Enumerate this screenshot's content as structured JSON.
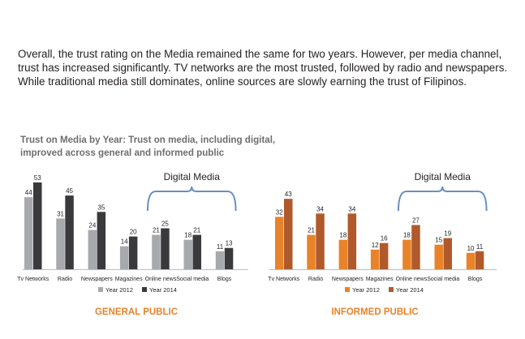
{
  "intro_text": "Overall, the trust rating on the Media remained the same for two years. However, per media channel, trust has increased significantly.  TV networks are the most trusted, followed by radio and newspapers. While traditional media still dominates, online sources are slowly earning the trust of Filipinos.",
  "subtitle": "Trust on Media by Year: Trust on media, including digital, improved across general and informed public",
  "bracket_label": "Digital Media",
  "colors": {
    "general_2012": "#a7a9ac",
    "general_2014": "#3a3a3c",
    "informed_2012": "#e8832a",
    "informed_2014": "#b05a2c",
    "bracket": "#6a8fc2",
    "panel_title": "#e8832a"
  },
  "chart_data": [
    {
      "type": "bar",
      "title": "GENERAL PUBLIC",
      "categories": [
        "Tv Networks",
        "Radio",
        "Newspapers",
        "Magazines",
        "Online news",
        "Social media",
        "Blogs"
      ],
      "series": [
        {
          "name": "Year 2012",
          "values": [
            44,
            31,
            24,
            14,
            21,
            18,
            11
          ]
        },
        {
          "name": "Year 2014",
          "values": [
            53,
            45,
            35,
            20,
            25,
            21,
            13
          ]
        }
      ],
      "bracket": {
        "label": "Digital Media",
        "from_category": "Online news",
        "to_category": "Blogs"
      },
      "legend_position": "bottom",
      "grid": false
    },
    {
      "type": "bar",
      "title": "INFORMED PUBLIC",
      "categories": [
        "Tv Networks",
        "Radio",
        "Newspapers",
        "Magazines",
        "Online news",
        "Social media",
        "Blogs"
      ],
      "series": [
        {
          "name": "Year 2012",
          "values": [
            32,
            21,
            18,
            12,
            18,
            15,
            10
          ]
        },
        {
          "name": "Year 2014",
          "values": [
            43,
            34,
            34,
            16,
            27,
            19,
            11
          ]
        }
      ],
      "bracket": {
        "label": "Digital Media",
        "from_category": "Online news",
        "to_category": "Blogs"
      },
      "legend_position": "bottom",
      "grid": false
    }
  ]
}
